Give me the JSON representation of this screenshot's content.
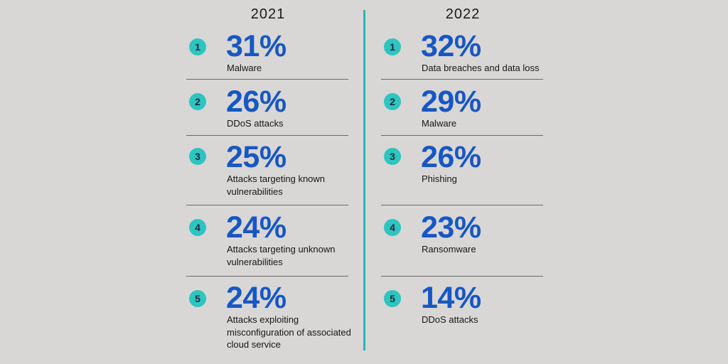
{
  "chart_data": {
    "type": "table",
    "columns": [
      {
        "year": "2021",
        "items": [
          {
            "rank": "1",
            "value_label": "31%",
            "value": 31,
            "label": "Malware"
          },
          {
            "rank": "2",
            "value_label": "26%",
            "value": 26,
            "label": "DDoS attacks"
          },
          {
            "rank": "3",
            "value_label": "25%",
            "value": 25,
            "label": "Attacks targeting known vulnerabilities"
          },
          {
            "rank": "4",
            "value_label": "24%",
            "value": 24,
            "label": "Attacks targeting unknown vulnerabilities"
          },
          {
            "rank": "5",
            "value_label": "24%",
            "value": 24,
            "label": "Attacks exploiting misconfiguration of associated cloud service"
          }
        ]
      },
      {
        "year": "2022",
        "items": [
          {
            "rank": "1",
            "value_label": "32%",
            "value": 32,
            "label": "Data breaches and data loss"
          },
          {
            "rank": "2",
            "value_label": "29%",
            "value": 29,
            "label": "Malware"
          },
          {
            "rank": "3",
            "value_label": "26%",
            "value": 26,
            "label": "Phishing"
          },
          {
            "rank": "4",
            "value_label": "23%",
            "value": 23,
            "label": "Ransomware"
          },
          {
            "rank": "5",
            "value_label": "14%",
            "value": 14,
            "label": "DDoS attacks"
          }
        ]
      }
    ],
    "colors": {
      "background": "#d8d7d5",
      "value": "#1757c2",
      "badge": "#2ec4c0",
      "divider": "#27b9b6"
    }
  }
}
